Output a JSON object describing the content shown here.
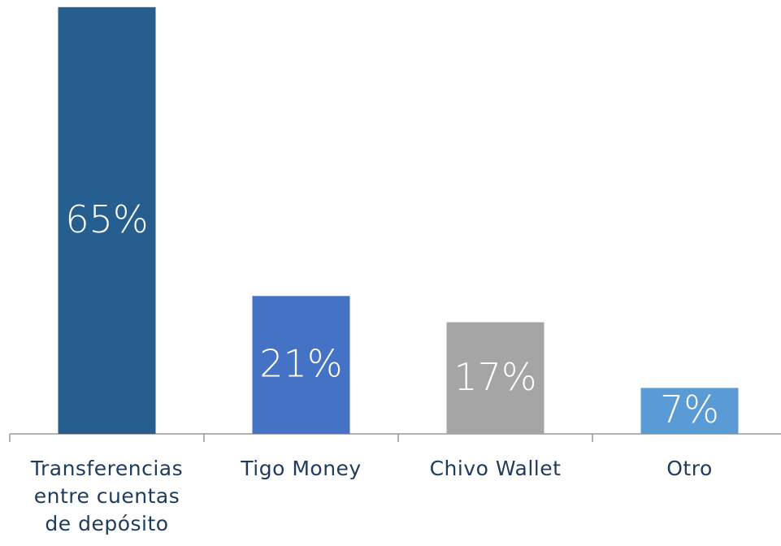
{
  "chart_data": {
    "type": "bar",
    "categories": [
      "Transferencias entre cuentas de depósito",
      "Tigo Money",
      "Chivo Wallet",
      "Otro"
    ],
    "values": [
      65,
      21,
      17,
      7
    ],
    "value_labels": [
      "65%",
      "21%",
      "17%",
      "7%"
    ],
    "colors": [
      "#255e8f",
      "#4472c4",
      "#a5a5a5",
      "#5b9bd5"
    ]
  }
}
